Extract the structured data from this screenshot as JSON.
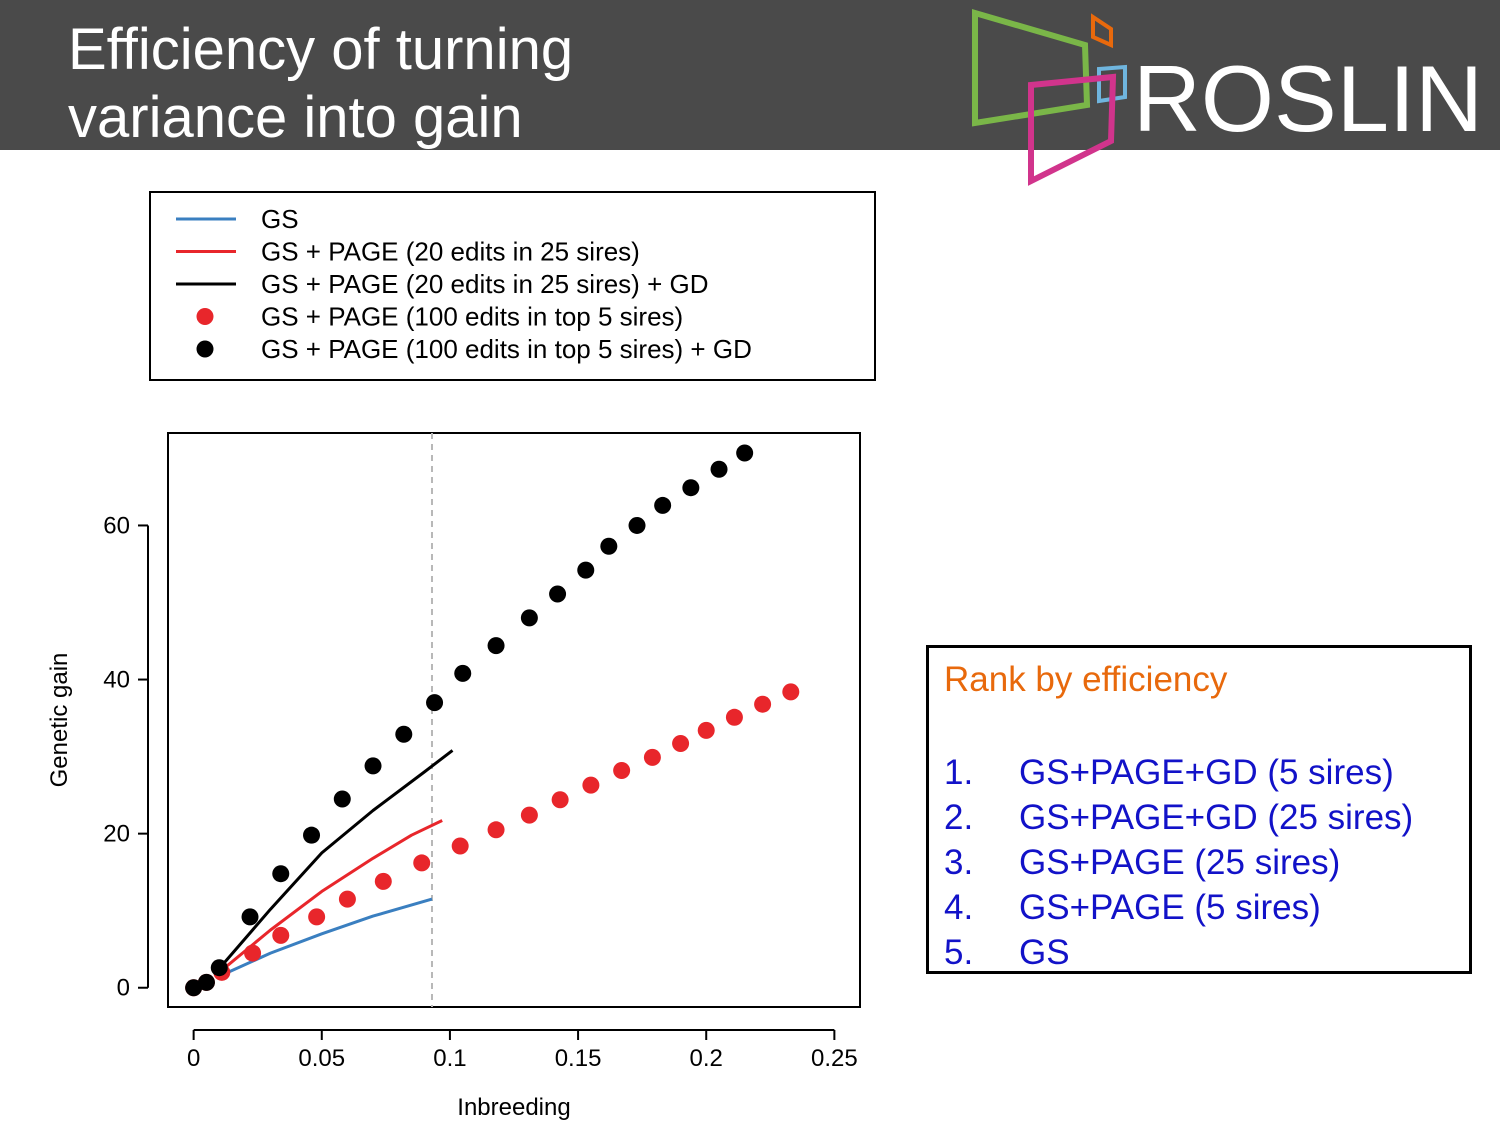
{
  "slide": {
    "title_lines": [
      "Efficiency of turning",
      "variance into gain"
    ],
    "logo_text": "ROSLIN"
  },
  "colors": {
    "header_bg": "#4a4a4a",
    "gs_line": "#3a7fc0",
    "page_red": "#e8262b",
    "black": "#000000",
    "rank_heading": "#e8690c",
    "rank_items": "#1212c8"
  },
  "chart_data": {
    "type": "line",
    "xlabel": "Inbreeding",
    "ylabel": "Genetic gain",
    "xlim": [
      -0.01,
      0.26
    ],
    "ylim": [
      -2.5,
      72
    ],
    "xticks": [
      0,
      0.05,
      0.1,
      0.15,
      0.2,
      0.25
    ],
    "xtick_labels": [
      "0",
      "0.05",
      "0.1",
      "0.15",
      "0.2",
      "0.25"
    ],
    "yticks": [
      0,
      20,
      40,
      60
    ],
    "ytick_labels": [
      "0",
      "20",
      "40",
      "60"
    ],
    "grid": false,
    "vline_x": 0.093,
    "legend": {
      "position": "top",
      "entries": [
        {
          "label": "GS",
          "marker": "line",
          "color": "#3a7fc0"
        },
        {
          "label": "GS + PAGE (20 edits in 25 sires)",
          "marker": "line",
          "color": "#e8262b"
        },
        {
          "label": "GS + PAGE (20 edits in 25 sires) + GD",
          "marker": "line",
          "color": "#000000"
        },
        {
          "label": "GS + PAGE (100 edits in top 5 sires)",
          "marker": "dot",
          "color": "#e8262b"
        },
        {
          "label": "GS + PAGE (100 edits in top 5 sires) + GD",
          "marker": "dot",
          "color": "#000000"
        }
      ]
    },
    "series": [
      {
        "name": "GS",
        "style": "line",
        "color": "#3a7fc0",
        "x": [
          0.01,
          0.03,
          0.05,
          0.07,
          0.093
        ],
        "y": [
          1.5,
          4.5,
          7.0,
          9.3,
          11.5
        ]
      },
      {
        "name": "GS + PAGE (20 edits in 25 sires)",
        "style": "line",
        "color": "#e8262b",
        "x": [
          0.01,
          0.03,
          0.05,
          0.07,
          0.085,
          0.097
        ],
        "y": [
          2.0,
          7.5,
          12.5,
          16.8,
          19.8,
          21.7
        ]
      },
      {
        "name": "GS + PAGE (20 edits in 25 sires) + GD",
        "style": "line",
        "color": "#000000",
        "x": [
          0.01,
          0.03,
          0.05,
          0.07,
          0.09,
          0.101
        ],
        "y": [
          2.5,
          10.2,
          17.5,
          23.0,
          28.0,
          30.8
        ]
      },
      {
        "name": "GS + PAGE (100 edits in top 5 sires)",
        "style": "dot",
        "color": "#e8262b",
        "x": [
          0,
          0.005,
          0.011,
          0.023,
          0.034,
          0.048,
          0.06,
          0.074,
          0.089,
          0.104,
          0.118,
          0.131,
          0.143,
          0.155,
          0.167,
          0.179,
          0.19,
          0.2,
          0.211,
          0.222,
          0.233
        ],
        "y": [
          0,
          0.7,
          2.0,
          4.5,
          6.8,
          9.2,
          11.5,
          13.8,
          16.2,
          18.4,
          20.5,
          22.4,
          24.4,
          26.3,
          28.2,
          29.9,
          31.7,
          33.4,
          35.1,
          36.8,
          38.4
        ]
      },
      {
        "name": "GS + PAGE (100 edits in top 5 sires) + GD",
        "style": "dot",
        "color": "#000000",
        "x": [
          0,
          0.005,
          0.01,
          0.022,
          0.034,
          0.046,
          0.058,
          0.07,
          0.082,
          0.094,
          0.105,
          0.118,
          0.131,
          0.142,
          0.153,
          0.162,
          0.173,
          0.183,
          0.194,
          0.205,
          0.215
        ],
        "y": [
          0,
          0.7,
          2.6,
          9.2,
          14.8,
          19.8,
          24.5,
          28.8,
          32.9,
          37.0,
          40.8,
          44.4,
          48.0,
          51.1,
          54.2,
          57.3,
          60.0,
          62.6,
          64.9,
          67.3,
          69.4
        ]
      }
    ]
  },
  "rank_panel": {
    "heading": "Rank by efficiency",
    "items": [
      {
        "num": "1.",
        "text": "GS+PAGE+GD (5 sires)"
      },
      {
        "num": "2.",
        "text": "GS+PAGE+GD (25 sires)"
      },
      {
        "num": "3.",
        "text": "GS+PAGE (25 sires)"
      },
      {
        "num": "4.",
        "text": "GS+PAGE (5 sires)"
      },
      {
        "num": "5.",
        "text": "GS"
      }
    ]
  }
}
